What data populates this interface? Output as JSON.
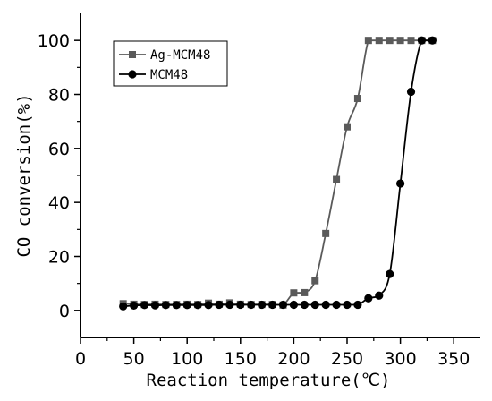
{
  "chart_data": {
    "type": "line",
    "xlabel": "Reaction temperature(℃)",
    "ylabel": "CO conversion(%)",
    "xlim": [
      0,
      375
    ],
    "ylim": [
      -10,
      110
    ],
    "x_ticks": [
      "0",
      "50",
      "100",
      "150",
      "200",
      "250",
      "300",
      "350"
    ],
    "y_ticks": [
      "0",
      "20",
      "40",
      "60",
      "80",
      "100"
    ],
    "legend_position": "top-left",
    "series": [
      {
        "name": "Ag-MCM48",
        "marker": "square",
        "color": "#5a5a5a",
        "points": [
          [
            40,
            2.5
          ],
          [
            50,
            2.3
          ],
          [
            60,
            2.2
          ],
          [
            70,
            2.3
          ],
          [
            80,
            2.2
          ],
          [
            90,
            2.2
          ],
          [
            100,
            2.3
          ],
          [
            110,
            2.2
          ],
          [
            120,
            2.7
          ],
          [
            130,
            2.3
          ],
          [
            140,
            2.8
          ],
          [
            150,
            2.3
          ],
          [
            160,
            2.2
          ],
          [
            170,
            2.2
          ],
          [
            180,
            2.2
          ],
          [
            190,
            2.0
          ],
          [
            200,
            6.5
          ],
          [
            210,
            6.6
          ],
          [
            220,
            11.0
          ],
          [
            230,
            28.5
          ],
          [
            240,
            48.5
          ],
          [
            250,
            68.0
          ],
          [
            260,
            78.5
          ],
          [
            270,
            100
          ],
          [
            280,
            100
          ],
          [
            290,
            100
          ],
          [
            300,
            100
          ],
          [
            310,
            100
          ],
          [
            320,
            100
          ],
          [
            330,
            100
          ]
        ]
      },
      {
        "name": "MCM48",
        "marker": "circle",
        "color": "#000000",
        "points": [
          [
            40,
            1.5
          ],
          [
            50,
            1.8
          ],
          [
            60,
            2.0
          ],
          [
            70,
            1.9
          ],
          [
            80,
            2.0
          ],
          [
            90,
            2.0
          ],
          [
            100,
            2.0
          ],
          [
            110,
            2.0
          ],
          [
            120,
            2.0
          ],
          [
            130,
            2.1
          ],
          [
            140,
            2.1
          ],
          [
            150,
            2.1
          ],
          [
            160,
            2.1
          ],
          [
            170,
            2.1
          ],
          [
            180,
            2.1
          ],
          [
            190,
            2.1
          ],
          [
            200,
            2.1
          ],
          [
            210,
            2.1
          ],
          [
            220,
            2.1
          ],
          [
            230,
            2.1
          ],
          [
            240,
            2.1
          ],
          [
            250,
            2.1
          ],
          [
            260,
            2.1
          ],
          [
            270,
            4.5
          ],
          [
            280,
            5.5
          ],
          [
            290,
            13.5
          ],
          [
            300,
            47.0
          ],
          [
            310,
            81.0
          ],
          [
            320,
            100
          ],
          [
            330,
            100
          ]
        ]
      }
    ]
  }
}
